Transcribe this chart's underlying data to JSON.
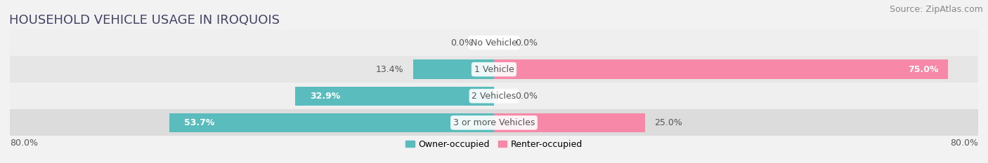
{
  "title": "HOUSEHOLD VEHICLE USAGE IN IROQUOIS",
  "source": "Source: ZipAtlas.com",
  "categories": [
    "No Vehicle",
    "1 Vehicle",
    "2 Vehicles",
    "3 or more Vehicles"
  ],
  "owner_values": [
    0.0,
    13.4,
    32.9,
    53.7
  ],
  "renter_values": [
    0.0,
    75.0,
    0.0,
    25.0
  ],
  "owner_color": "#5bbcbe",
  "renter_color": "#f888a8",
  "owner_label": "Owner-occupied",
  "renter_label": "Renter-occupied",
  "xlim": [
    -80,
    80
  ],
  "background_color": "#f2f2f2",
  "row_colors": [
    "#e8e8e8",
    "#e0e0e0",
    "#e8e8e8",
    "#d8d8d8"
  ],
  "row_alt_colors": [
    "#f0f0f0",
    "#e8e8e8",
    "#f0f0f0",
    "#e0e0e0"
  ],
  "title_fontsize": 13,
  "source_fontsize": 9,
  "label_fontsize": 9,
  "category_fontsize": 9,
  "axis_fontsize": 9,
  "title_color": "#444466",
  "source_color": "#888888",
  "label_color_dark": "#555555",
  "label_color_white": "#ffffff",
  "category_bg_color": "#ffffff"
}
